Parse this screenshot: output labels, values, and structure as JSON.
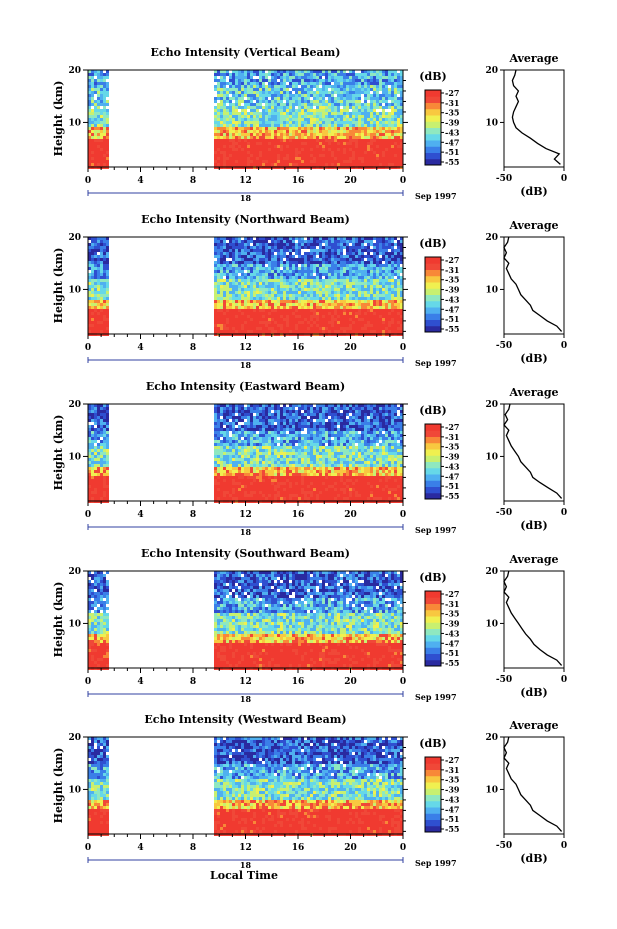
{
  "colors": {
    "scale": [
      "#2a2aa0",
      "#2f4fd0",
      "#3a7fe8",
      "#4fb0f0",
      "#66d8e8",
      "#8fe8c0",
      "#c8f070",
      "#f0f050",
      "#f8c840",
      "#f88838",
      "#f04838",
      "#f03a30"
    ],
    "line": "#000000"
  },
  "common": {
    "x_ticks": [
      "0",
      "4",
      "8",
      "12",
      "16",
      "20",
      "0"
    ],
    "date_label": "18",
    "month_label": "Sep 1997",
    "x_label": "Local Time",
    "y_label": "Height (km)",
    "y_ticks": [
      "10",
      "20"
    ],
    "cbar_unit": "(dB)",
    "cbar_ticks": [
      "-27",
      "-31",
      "-35",
      "-39",
      "-43",
      "-47",
      "-51",
      "-55"
    ],
    "avg_title": "Average",
    "avg_x_ticks": [
      "-50",
      "0"
    ],
    "avg_y_ticks": [
      "10",
      "20"
    ],
    "avg_xlabel": "(dB)"
  },
  "chart_data": [
    {
      "type": "heatmap",
      "title": "Echo Intensity (Vertical Beam)",
      "xlim_hours": [
        0,
        24
      ],
      "ylim_km": [
        1.5,
        20
      ],
      "no_data_hours": [
        1.5,
        9.5
      ],
      "clim_db": [
        -55,
        -27
      ],
      "layers_km": [
        [
          0,
          7,
          -27
        ],
        [
          7,
          9,
          -35
        ],
        [
          9,
          13,
          -43
        ],
        [
          13,
          17,
          -45
        ],
        [
          17,
          20,
          -47
        ]
      ],
      "average": {
        "title": "Average",
        "xlim_db": [
          -50,
          0
        ],
        "heights_km": [
          2,
          3,
          4,
          5,
          6,
          7,
          8,
          9,
          10,
          11,
          12,
          13,
          14,
          15,
          16,
          17,
          18,
          19,
          20
        ],
        "values_db": [
          -3,
          -8,
          -4,
          -15,
          -22,
          -28,
          -35,
          -40,
          -42,
          -43,
          -42,
          -40,
          -38,
          -40,
          -38,
          -42,
          -43,
          -41,
          -40
        ]
      }
    },
    {
      "type": "heatmap",
      "title": "Echo Intensity (Northward Beam)",
      "xlim_hours": [
        0,
        24
      ],
      "ylim_km": [
        1.5,
        20
      ],
      "no_data_hours": [
        1.5,
        9.5
      ],
      "clim_db": [
        -55,
        -27
      ],
      "layers_km": [
        [
          0,
          6,
          -27
        ],
        [
          6,
          8,
          -35
        ],
        [
          8,
          12,
          -43
        ],
        [
          12,
          15,
          -47
        ],
        [
          15,
          20,
          -51
        ]
      ],
      "average": {
        "title": "Average",
        "xlim_db": [
          -50,
          0
        ],
        "heights_km": [
          2,
          3,
          4,
          5,
          6,
          7,
          8,
          9,
          10,
          11,
          12,
          13,
          14,
          15,
          16,
          17,
          18,
          19,
          20
        ],
        "values_db": [
          -2,
          -6,
          -14,
          -20,
          -26,
          -28,
          -32,
          -36,
          -38,
          -40,
          -44,
          -46,
          -48,
          -46,
          -50,
          -48,
          -50,
          -47,
          -46
        ]
      }
    },
    {
      "type": "heatmap",
      "title": "Echo Intensity (Eastward Beam)",
      "xlim_hours": [
        0,
        24
      ],
      "ylim_km": [
        1.5,
        20
      ],
      "no_data_hours": [
        1.5,
        9.5
      ],
      "clim_db": [
        -55,
        -27
      ],
      "layers_km": [
        [
          0,
          6,
          -27
        ],
        [
          6,
          8,
          -35
        ],
        [
          8,
          12,
          -43
        ],
        [
          12,
          15,
          -47
        ],
        [
          15,
          20,
          -51
        ]
      ],
      "average": {
        "title": "Average",
        "xlim_db": [
          -50,
          0
        ],
        "heights_km": [
          2,
          3,
          4,
          5,
          6,
          7,
          8,
          9,
          10,
          11,
          12,
          13,
          14,
          15,
          16,
          17,
          18,
          19,
          20
        ],
        "values_db": [
          -2,
          -6,
          -13,
          -20,
          -26,
          -28,
          -32,
          -36,
          -38,
          -41,
          -44,
          -46,
          -48,
          -46,
          -50,
          -47,
          -49,
          -46,
          -45
        ]
      }
    },
    {
      "type": "heatmap",
      "title": "Echo Intensity (Southward Beam)",
      "xlim_hours": [
        0,
        24
      ],
      "ylim_km": [
        1.5,
        20
      ],
      "no_data_hours": [
        1.5,
        9.5
      ],
      "clim_db": [
        -55,
        -27
      ],
      "layers_km": [
        [
          0,
          6,
          -27
        ],
        [
          6,
          8,
          -35
        ],
        [
          8,
          12,
          -43
        ],
        [
          12,
          15,
          -47
        ],
        [
          15,
          20,
          -51
        ]
      ],
      "average": {
        "title": "Average",
        "xlim_db": [
          -50,
          0
        ],
        "heights_km": [
          2,
          3,
          4,
          5,
          6,
          7,
          8,
          9,
          10,
          11,
          12,
          13,
          14,
          15,
          16,
          17,
          18,
          19,
          20
        ],
        "values_db": [
          -2,
          -6,
          -14,
          -20,
          -25,
          -28,
          -32,
          -35,
          -38,
          -41,
          -44,
          -46,
          -48,
          -46,
          -50,
          -48,
          -50,
          -47,
          -46
        ]
      }
    },
    {
      "type": "heatmap",
      "title": "Echo Intensity (Westward Beam)",
      "xlim_hours": [
        0,
        24
      ],
      "ylim_km": [
        1.5,
        20
      ],
      "no_data_hours": [
        1.5,
        9.5
      ],
      "clim_db": [
        -55,
        -27
      ],
      "layers_km": [
        [
          0,
          6,
          -27
        ],
        [
          6,
          8,
          -35
        ],
        [
          8,
          12,
          -43
        ],
        [
          12,
          15,
          -47
        ],
        [
          15,
          20,
          -51
        ]
      ],
      "average": {
        "title": "Average",
        "xlim_db": [
          -50,
          0
        ],
        "heights_km": [
          2,
          3,
          4,
          5,
          6,
          7,
          8,
          9,
          10,
          11,
          12,
          13,
          14,
          15,
          16,
          17,
          18,
          19,
          20
        ],
        "values_db": [
          -2,
          -6,
          -14,
          -20,
          -26,
          -28,
          -32,
          -36,
          -38,
          -40,
          -44,
          -46,
          -48,
          -46,
          -50,
          -48,
          -50,
          -47,
          -46
        ]
      }
    }
  ]
}
